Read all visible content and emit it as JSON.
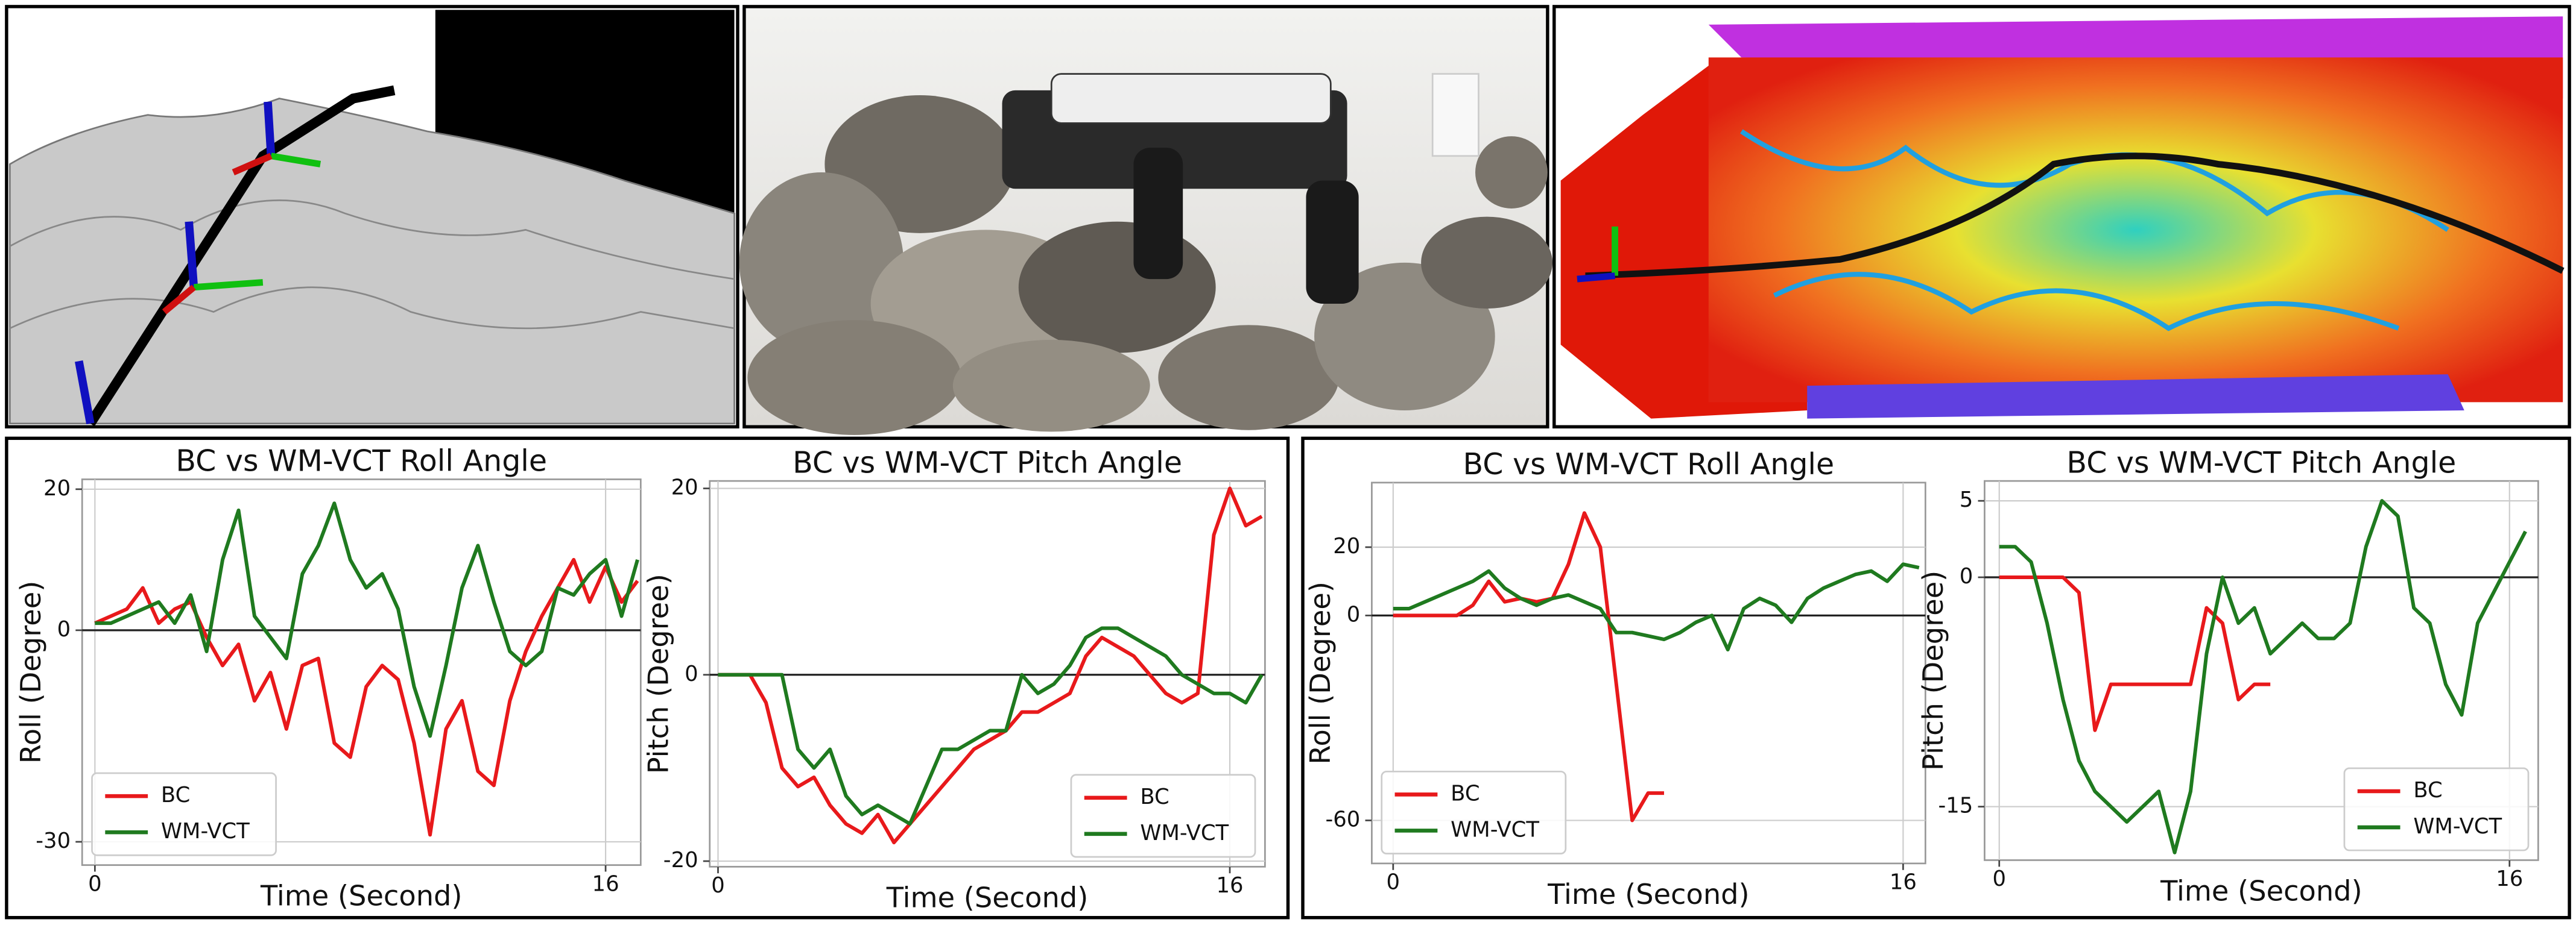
{
  "chart_data": [
    {
      "type": "line",
      "title": "BC vs WM-VCT Roll Angle",
      "x_label": "Time (Second)",
      "y_label": "Roll (Degree)",
      "x": [
        0,
        0.5,
        1,
        1.5,
        2,
        2.5,
        3,
        3.5,
        4,
        4.5,
        5,
        5.5,
        6,
        6.5,
        7,
        7.5,
        8,
        8.5,
        9,
        9.5,
        10,
        10.5,
        11,
        11.5,
        12,
        12.5,
        13,
        13.5,
        14,
        14.5,
        15,
        15.5,
        16,
        16.5,
        17
      ],
      "series": [
        {
          "name": "BC",
          "color": "#e8191b",
          "values": [
            1,
            2,
            3,
            6,
            1,
            3,
            4,
            -1,
            -5,
            -2,
            -10,
            -6,
            -14,
            -5,
            -4,
            -16,
            -18,
            -8,
            -5,
            -7,
            -16,
            -29,
            -14,
            -10,
            -20,
            -22,
            -10,
            -3,
            2,
            6,
            10,
            4,
            9,
            4,
            7
          ]
        },
        {
          "name": "WM-VCT",
          "color": "#1f7a1f",
          "values": [
            1,
            1,
            2,
            3,
            4,
            1,
            5,
            -3,
            10,
            17,
            2,
            -1,
            -4,
            8,
            12,
            18,
            10,
            6,
            8,
            3,
            -8,
            -15,
            -5,
            6,
            12,
            4,
            -3,
            -5,
            -3,
            6,
            5,
            8,
            10,
            2,
            10
          ]
        }
      ],
      "xlim": [
        -0.4,
        17.1
      ],
      "ylim": [
        -33.3,
        21.4
      ],
      "xticks": [
        0,
        16
      ],
      "yticks": [
        -30,
        0,
        20
      ],
      "grid": true,
      "zero_line": true,
      "legend": "lower left"
    },
    {
      "type": "line",
      "title": "BC vs WM-VCT Pitch Angle",
      "x_label": "Time (Second)",
      "y_label": "Pitch (Degree)",
      "x": [
        0,
        0.5,
        1,
        1.5,
        2,
        2.5,
        3,
        3.5,
        4,
        4.5,
        5,
        5.5,
        6,
        6.5,
        7,
        7.5,
        8,
        8.5,
        9,
        9.5,
        10,
        10.5,
        11,
        11.5,
        12,
        12.5,
        13,
        13.5,
        14,
        14.5,
        15,
        15.5,
        16,
        16.5,
        17
      ],
      "series": [
        {
          "name": "BC",
          "color": "#e8191b",
          "values": [
            0,
            0,
            0,
            -3,
            -10,
            -12,
            -11,
            -14,
            -16,
            -17,
            -15,
            -18,
            -16,
            -14,
            -12,
            -10,
            -8,
            -7,
            -6,
            -4,
            -4,
            -3,
            -2,
            2,
            4,
            3,
            2,
            0,
            -2,
            -3,
            -2,
            15,
            20,
            16,
            17
          ]
        },
        {
          "name": "WM-VCT",
          "color": "#1f7a1f",
          "values": [
            0,
            0,
            0,
            0,
            0,
            -8,
            -10,
            -8,
            -13,
            -15,
            -14,
            -15,
            -16,
            -12,
            -8,
            -8,
            -7,
            -6,
            -6,
            0,
            -2,
            -1,
            1,
            4,
            5,
            5,
            4,
            3,
            2,
            0,
            -1,
            -2,
            -2,
            -3,
            0
          ]
        }
      ],
      "xlim": [
        -0.26,
        17.1
      ],
      "ylim": [
        -20.6,
        20.8
      ],
      "xticks": [
        0,
        16
      ],
      "yticks": [
        -20,
        0,
        20
      ],
      "grid": true,
      "zero_line": true,
      "legend": "lower right"
    },
    {
      "type": "line",
      "title": "BC vs WM-VCT Roll Angle",
      "x_label": "Time (Second)",
      "y_label": "Roll (Degree)",
      "x": [
        0,
        0.5,
        1,
        1.5,
        2,
        2.5,
        3,
        3.5,
        4,
        4.5,
        5,
        5.5,
        6,
        6.5,
        7,
        7.5,
        8,
        8.5,
        9,
        9.5,
        10,
        10.5,
        11,
        11.5,
        12,
        12.5,
        13,
        13.5,
        14,
        14.5,
        15,
        15.5,
        16,
        16.5
      ],
      "series": [
        {
          "name": "BC",
          "color": "#e8191b",
          "values": [
            0,
            0,
            0,
            0,
            0,
            3,
            10,
            4,
            5,
            4,
            5,
            15,
            30,
            20,
            -20,
            -60,
            -52,
            -52,
            null,
            null,
            null,
            null,
            null,
            null,
            null,
            null,
            null,
            null,
            null,
            null,
            null,
            null,
            null,
            null
          ]
        },
        {
          "name": "WM-VCT",
          "color": "#1f7a1f",
          "values": [
            2,
            2,
            4,
            6,
            8,
            10,
            13,
            8,
            5,
            3,
            5,
            6,
            4,
            2,
            -5,
            -5,
            -6,
            -7,
            -5,
            -2,
            0,
            -10,
            2,
            5,
            3,
            -2,
            5,
            8,
            10,
            12,
            13,
            10,
            15,
            14
          ]
        }
      ],
      "xlim": [
        -0.67,
        16.7
      ],
      "ylim": [
        -72.6,
        38.9
      ],
      "xticks": [
        0,
        16
      ],
      "yticks": [
        -60,
        0,
        20
      ],
      "grid": true,
      "zero_line": true,
      "legend": "lower left"
    },
    {
      "type": "line",
      "title": "BC vs WM-VCT Pitch Angle",
      "x_label": "Time (Second)",
      "y_label": "Pitch (Degree)",
      "x": [
        0,
        0.5,
        1,
        1.5,
        2,
        2.5,
        3,
        3.5,
        4,
        4.5,
        5,
        5.5,
        6,
        6.5,
        7,
        7.5,
        8,
        8.5,
        9,
        9.5,
        10,
        10.5,
        11,
        11.5,
        12,
        12.5,
        13,
        13.5,
        14,
        14.5,
        15,
        15.5,
        16,
        16.5
      ],
      "series": [
        {
          "name": "BC",
          "color": "#e8191b",
          "values": [
            0,
            0,
            0,
            0,
            0,
            -1,
            -10,
            -7,
            -7,
            -7,
            -7,
            -7,
            -7,
            -2,
            -3,
            -8,
            -7,
            -7,
            null,
            null,
            null,
            null,
            null,
            null,
            null,
            null,
            null,
            null,
            null,
            null,
            null,
            null,
            null,
            null
          ]
        },
        {
          "name": "WM-VCT",
          "color": "#1f7a1f",
          "values": [
            2,
            2,
            1,
            -3,
            -8,
            -12,
            -14,
            -15,
            -16,
            -15,
            -14,
            -18,
            -14,
            -5,
            0,
            -3,
            -2,
            -5,
            -4,
            -3,
            -4,
            -4,
            -3,
            2,
            5,
            4,
            -2,
            -3,
            -7,
            -9,
            -3,
            -1,
            1,
            3
          ]
        }
      ],
      "xlim": [
        -0.46,
        16.9
      ],
      "ylim": [
        -18.5,
        6.3
      ],
      "xticks": [
        0,
        16
      ],
      "yticks": [
        -15,
        0,
        5
      ],
      "grid": true,
      "zero_line": true,
      "legend": "lower right"
    }
  ]
}
